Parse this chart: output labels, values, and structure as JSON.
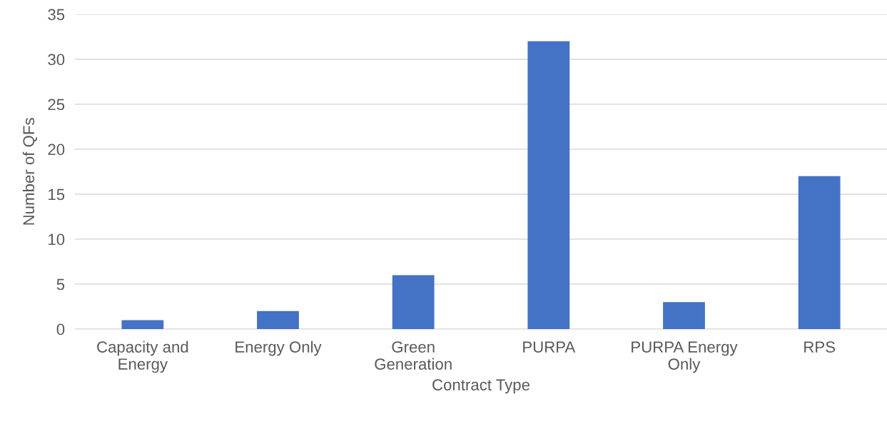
{
  "chart_data": {
    "type": "bar",
    "xlabel": "Contract Type",
    "ylabel": "Number of QFs",
    "categories": [
      "Capacity and\nEnergy",
      "Energy Only",
      "Green\nGeneration",
      "PURPA",
      "PURPA Energy\nOnly",
      "RPS"
    ],
    "values": [
      1,
      2,
      6,
      32,
      3,
      17
    ],
    "color": "#4472c4",
    "ylim": [
      0,
      35
    ],
    "yticks": [
      0,
      5,
      10,
      15,
      20,
      25,
      30,
      35
    ],
    "grid": "y"
  }
}
